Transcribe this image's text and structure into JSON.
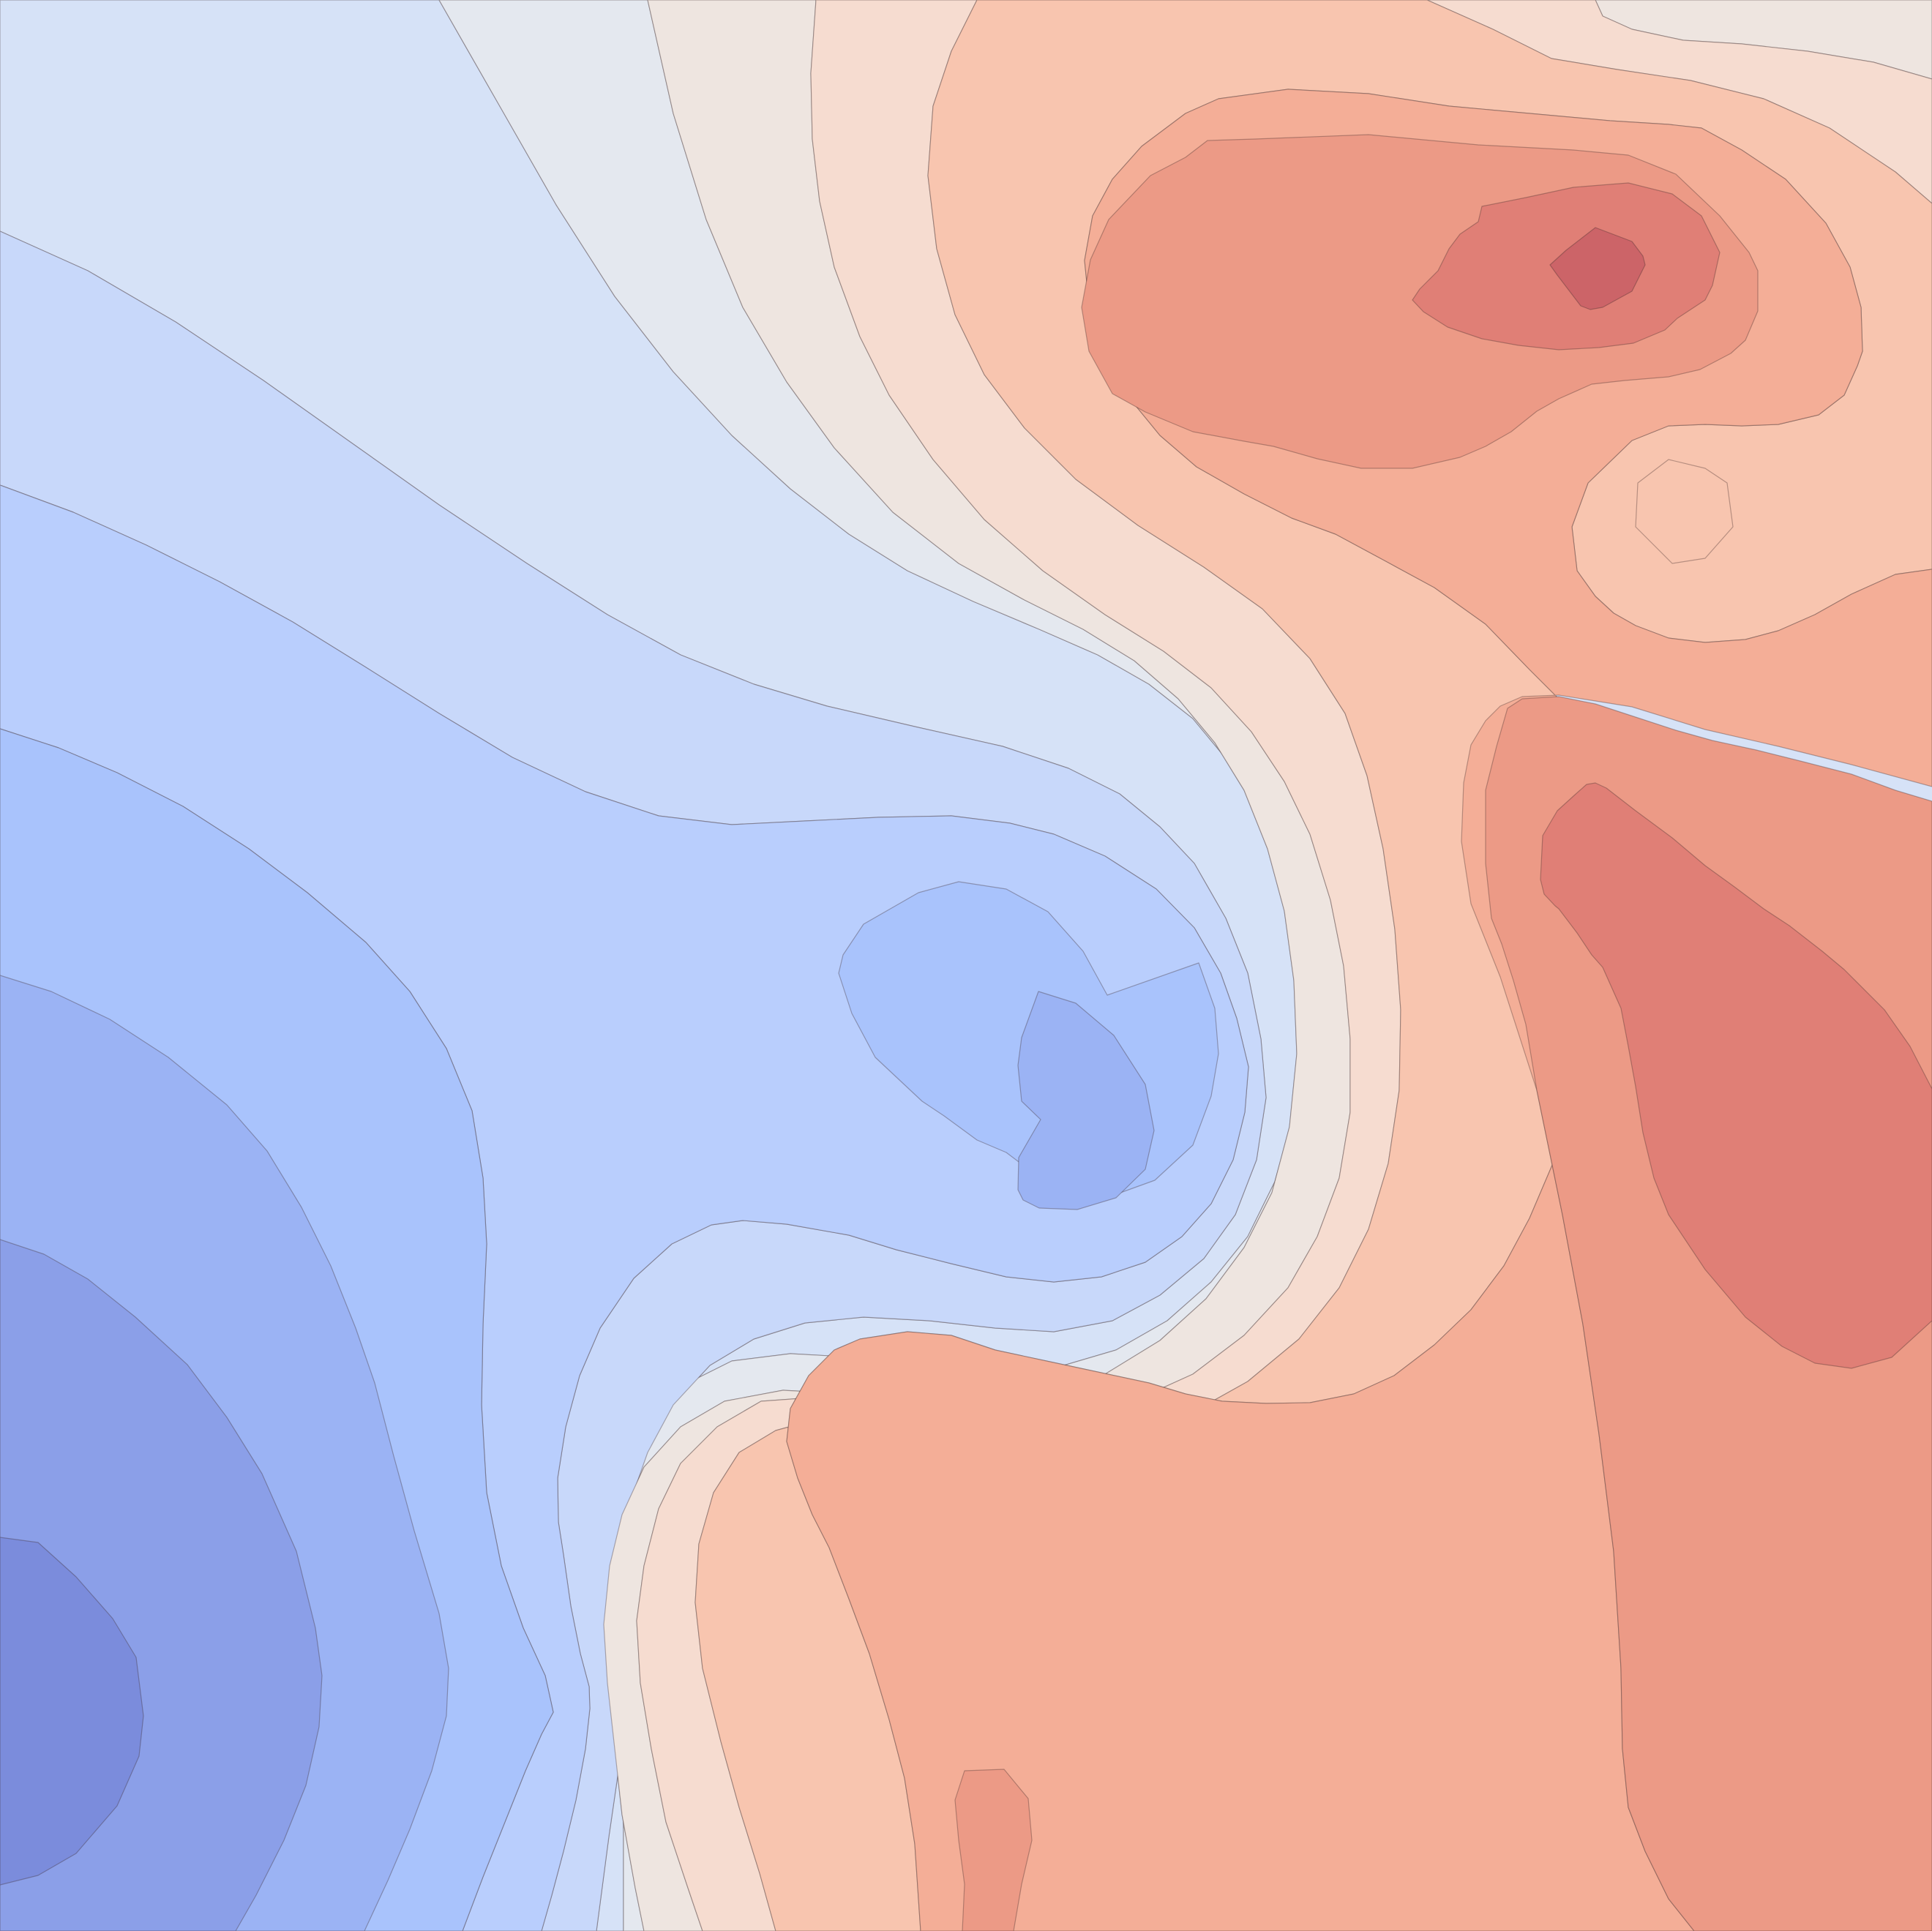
{
  "chart_data": {
    "type": "contour",
    "colormap": "coolwarm",
    "filled": true,
    "axes_visible": false,
    "grid": false,
    "legend": "none",
    "colorbar": false,
    "level_count": 14,
    "xlim": [
      0,
      100
    ],
    "ylim": [
      0,
      100
    ],
    "level_colors": [
      "#7b8cdc",
      "#8b9fe8",
      "#9bb3f4",
      "#a9c3fc",
      "#b9cefd",
      "#c8d8fa",
      "#d6e2f7",
      "#e4e8ef",
      "#eee5e0",
      "#f6dcd0",
      "#f8c5af",
      "#f4ae97",
      "#ec9a86",
      "#e07f76",
      "#cc6468"
    ],
    "local_extrema": [
      {
        "kind": "min",
        "x": 3,
        "y": 11,
        "level": 0
      },
      {
        "kind": "min",
        "x": 55,
        "y": 45,
        "level": 2
      },
      {
        "kind": "max",
        "x": 85,
        "y": 86,
        "level": 14
      },
      {
        "kind": "max",
        "x": 93,
        "y": 38,
        "level": 13
      },
      {
        "kind": "max",
        "x": 52,
        "y": 2,
        "level": 12
      }
    ]
  }
}
